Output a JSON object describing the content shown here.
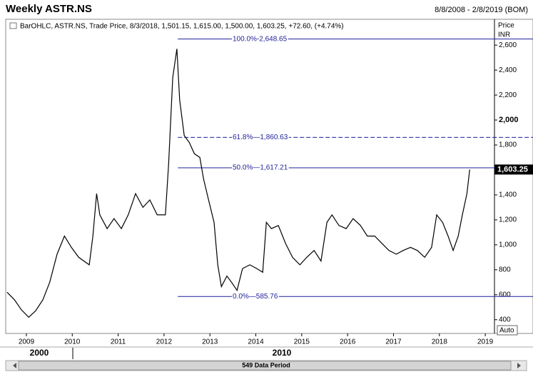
{
  "chart_data": {
    "type": "line",
    "title": "Weekly ASTR.NS",
    "subtitle": "8/8/2008 - 2/8/2019 (BOM)",
    "legend_text": "BarOHLC, ASTR.NS, Trade Price, 8/3/2018, 1,501.15, 1,615.00, 1,500.00, 1,603.25, +72.60, (+4.74%)",
    "y_axis_label": "Price",
    "y_axis_unit": "INR",
    "auto_button": "Auto",
    "footer_text": "549 Data Period",
    "decade_labels": [
      "2000",
      "2010"
    ],
    "color": "#000000",
    "fib_color": "#1f1f99",
    "x": [
      2008.58,
      2008.74,
      2008.89,
      2009.05,
      2009.2,
      2009.36,
      2009.51,
      2009.67,
      2009.83,
      2009.98,
      2010.14,
      2010.37,
      2010.45,
      2010.53,
      2010.6,
      2010.76,
      2010.91,
      2011.07,
      2011.22,
      2011.38,
      2011.54,
      2011.69,
      2011.85,
      2012.03,
      2012.1,
      2012.19,
      2012.28,
      2012.34,
      2012.44,
      2012.55,
      2012.66,
      2012.78,
      2012.86,
      2012.97,
      2013.09,
      2013.17,
      2013.25,
      2013.37,
      2013.48,
      2013.59,
      2013.71,
      2013.87,
      2014.02,
      2014.15,
      2014.23,
      2014.34,
      2014.49,
      2014.65,
      2014.8,
      2014.96,
      2015.11,
      2015.27,
      2015.42,
      2015.55,
      2015.66,
      2015.81,
      2015.97,
      2016.12,
      2016.28,
      2016.43,
      2016.59,
      2016.75,
      2016.9,
      2017.06,
      2017.21,
      2017.37,
      2017.52,
      2017.68,
      2017.83,
      2017.94,
      2018.07,
      2018.19,
      2018.3,
      2018.41,
      2018.5,
      2018.6,
      2018.66
    ],
    "values": [
      620,
      560,
      480,
      420,
      470,
      560,
      700,
      925,
      1070,
      980,
      900,
      840,
      1070,
      1410,
      1240,
      1130,
      1210,
      1130,
      1240,
      1410,
      1300,
      1360,
      1240,
      1240,
      1645,
      2340,
      2570,
      2160,
      1875,
      1820,
      1730,
      1700,
      1530,
      1360,
      1180,
      840,
      665,
      750,
      695,
      635,
      810,
      840,
      810,
      780,
      1180,
      1130,
      1155,
      1010,
      900,
      840,
      900,
      955,
      870,
      1180,
      1240,
      1155,
      1130,
      1210,
      1155,
      1070,
      1070,
      1010,
      955,
      925,
      955,
      980,
      955,
      900,
      980,
      1240,
      1180,
      1070,
      955,
      1070,
      1240,
      1410,
      1603.25
    ],
    "last_price": {
      "value": 1603.25,
      "label": "1,603.25"
    },
    "fib_levels": [
      {
        "value": 2648.65,
        "label": "100.0%-2,648.65",
        "dashed": false
      },
      {
        "value": 1860.63,
        "label": "61.8%—1,860.63",
        "dashed": true
      },
      {
        "value": 1617.21,
        "label": "50.0%—1,617.21",
        "dashed": false
      },
      {
        "value": 585.76,
        "label": "0.0%—585.76",
        "dashed": false
      }
    ],
    "fib_start": 2012.3,
    "xlim": [
      2008.55,
      2019.2
    ],
    "xticks": [
      2009,
      2010,
      2011,
      2012,
      2013,
      2014,
      2015,
      2016,
      2017,
      2018,
      2019
    ],
    "ylim": [
      290,
      2807
    ],
    "yticks": [
      {
        "value": 400,
        "label": "400"
      },
      {
        "value": 600,
        "label": "600"
      },
      {
        "value": 800,
        "label": "800"
      },
      {
        "value": 1000,
        "label": "1,000"
      },
      {
        "value": 1200,
        "label": "1,200"
      },
      {
        "value": 1400,
        "label": "1,400"
      },
      {
        "value": 1600,
        "label": "1,600"
      },
      {
        "value": 1800,
        "label": "1,800"
      },
      {
        "value": 2000,
        "label": "2,000"
      },
      {
        "value": 2200,
        "label": "2,200"
      },
      {
        "value": 2400,
        "label": "2,400"
      },
      {
        "value": 2600,
        "label": "2,600"
      }
    ],
    "grid": false
  }
}
